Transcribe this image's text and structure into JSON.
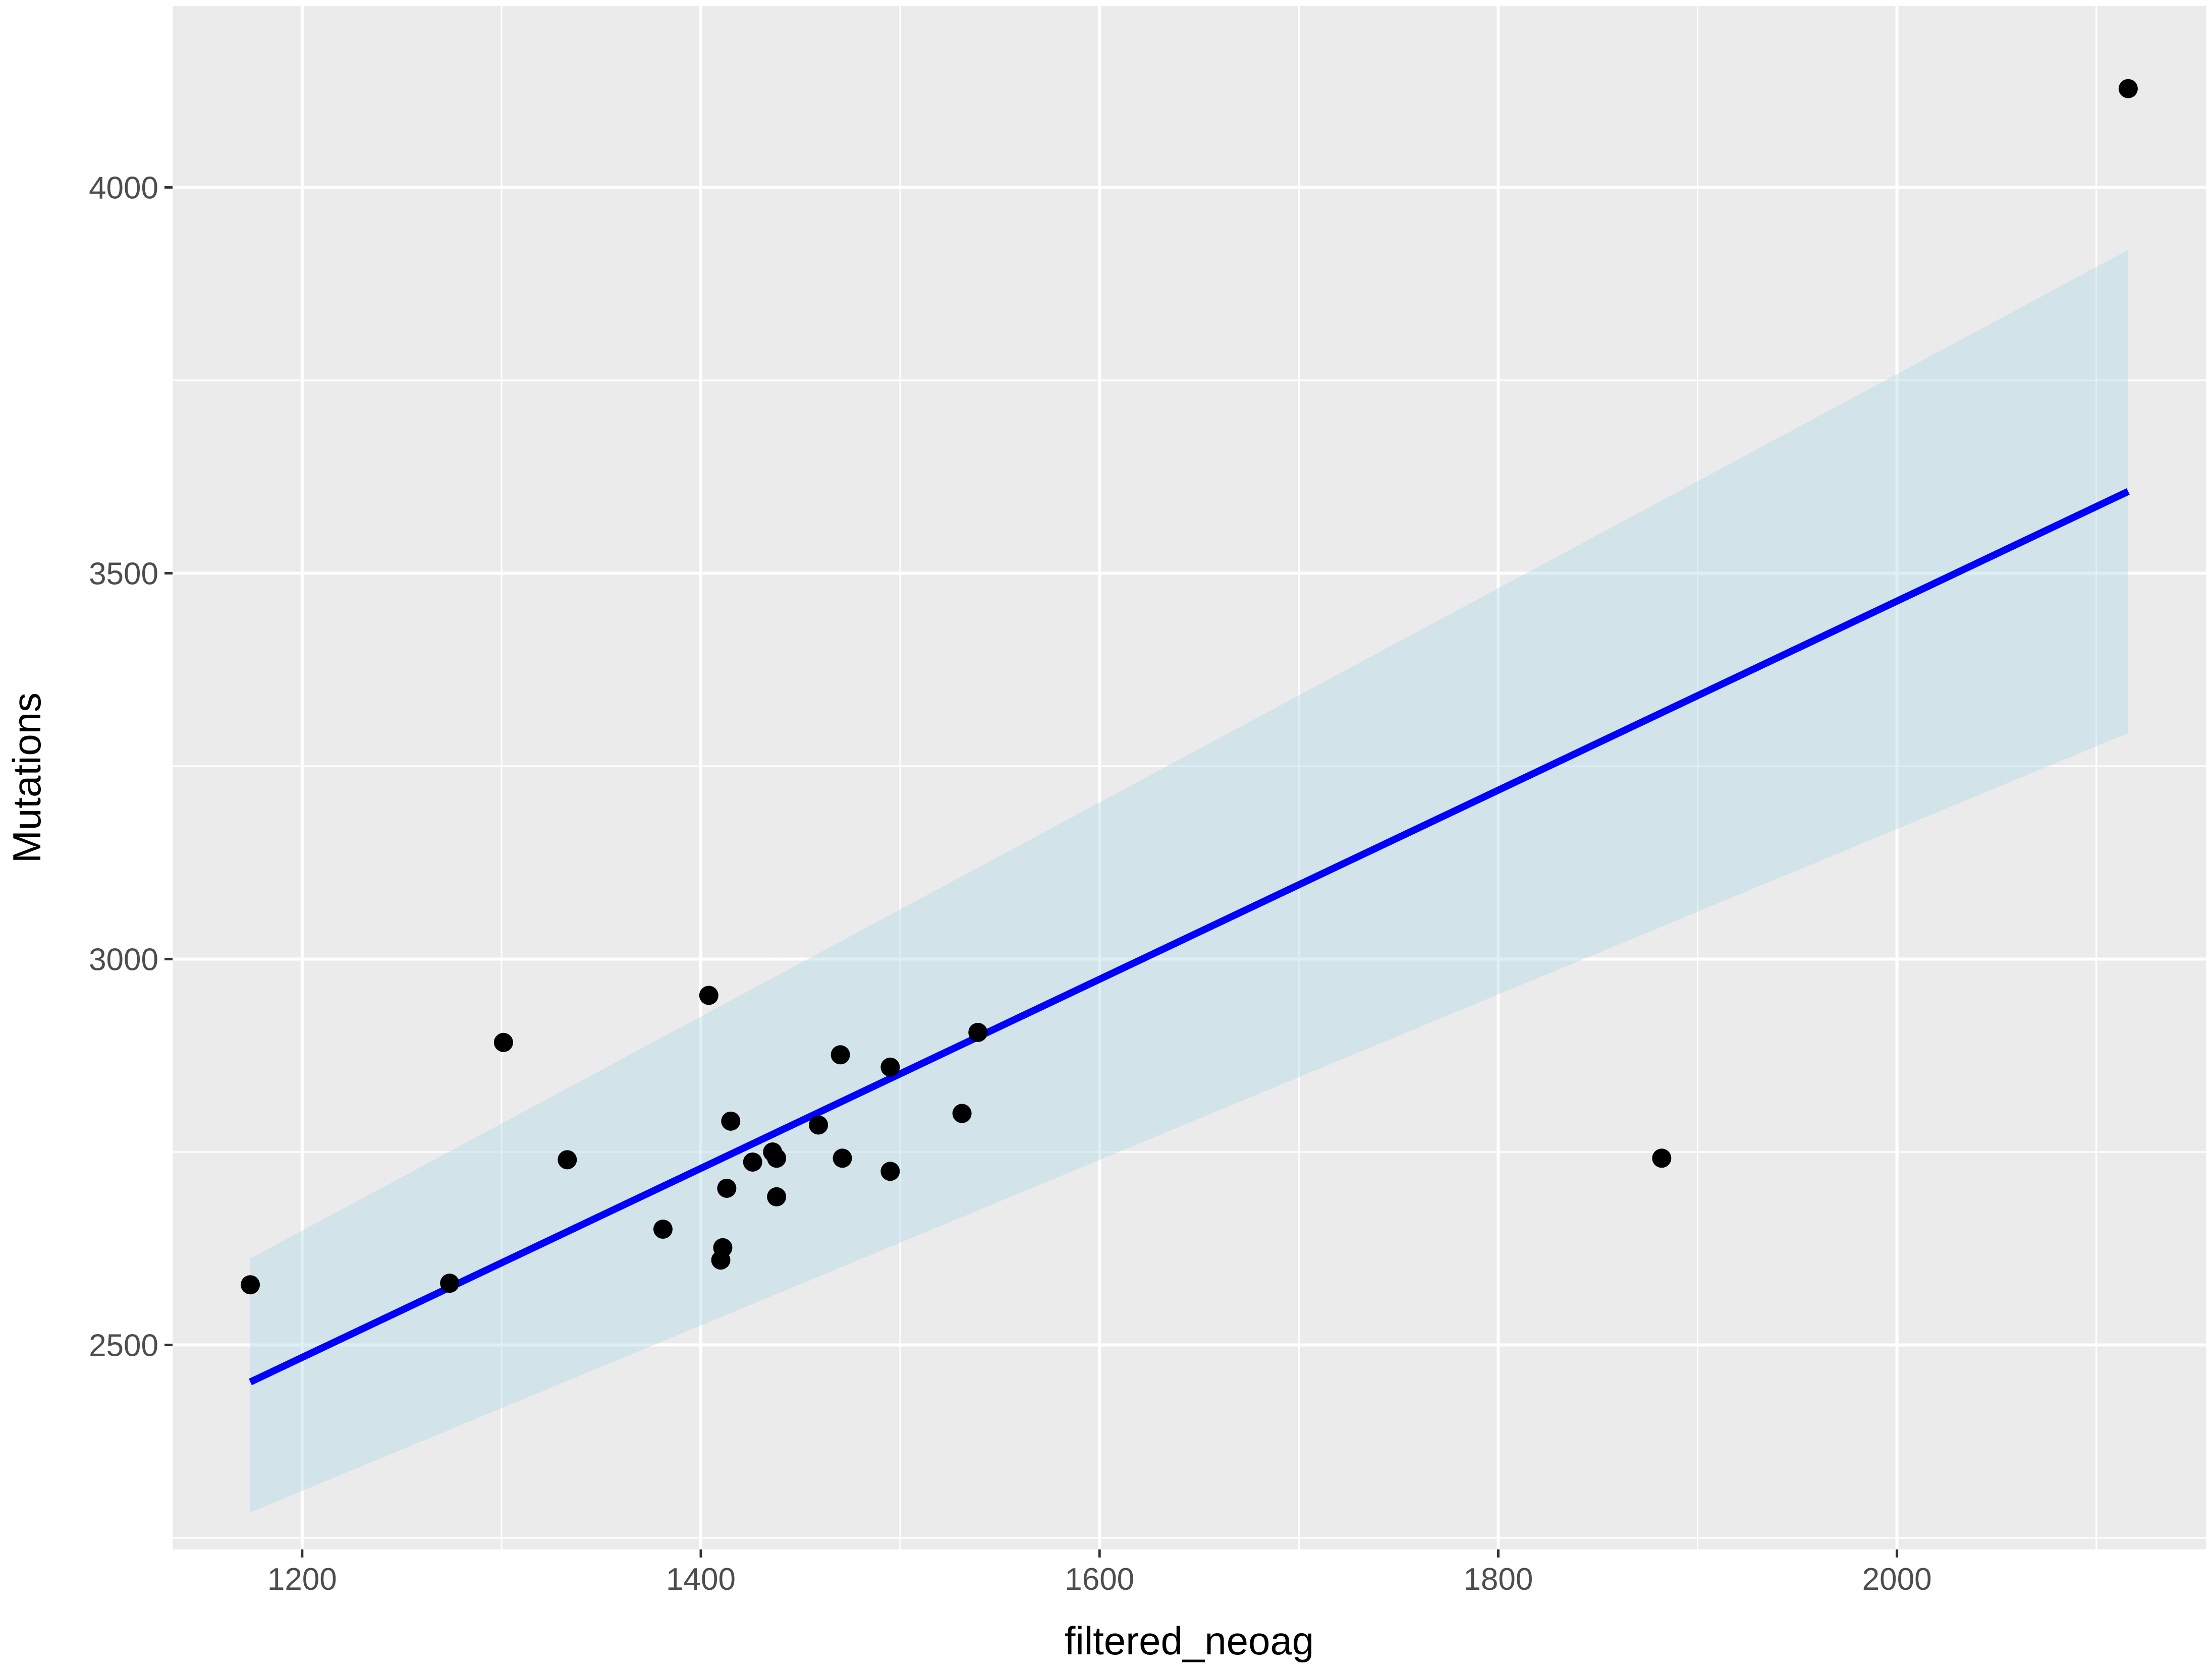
{
  "chart_data": {
    "type": "scatter",
    "xlabel": "filtered_neoag",
    "ylabel": "Mutations",
    "xlim": [
      1135,
      2155
    ],
    "ylim": [
      2235,
      4235
    ],
    "x_ticks": [
      1200,
      1400,
      1600,
      1800,
      2000
    ],
    "y_ticks": [
      2500,
      3000,
      3500,
      4000
    ],
    "x_minor_ticks": [
      1300,
      1500,
      1700,
      1900,
      2100
    ],
    "y_minor_ticks": [
      2250,
      2750,
      3250,
      3750
    ],
    "points": [
      {
        "x": 1174,
        "y": 2578
      },
      {
        "x": 1274,
        "y": 2580
      },
      {
        "x": 1301,
        "y": 2892
      },
      {
        "x": 1333,
        "y": 2740
      },
      {
        "x": 1381,
        "y": 2650
      },
      {
        "x": 1404,
        "y": 2953
      },
      {
        "x": 1410,
        "y": 2610
      },
      {
        "x": 1411,
        "y": 2626
      },
      {
        "x": 1413,
        "y": 2703
      },
      {
        "x": 1415,
        "y": 2790
      },
      {
        "x": 1426,
        "y": 2737
      },
      {
        "x": 1436,
        "y": 2750
      },
      {
        "x": 1438,
        "y": 2742
      },
      {
        "x": 1438,
        "y": 2692
      },
      {
        "x": 1459,
        "y": 2785
      },
      {
        "x": 1470,
        "y": 2876
      },
      {
        "x": 1471,
        "y": 2742
      },
      {
        "x": 1495,
        "y": 2860
      },
      {
        "x": 1495,
        "y": 2725
      },
      {
        "x": 1531,
        "y": 2800
      },
      {
        "x": 1539,
        "y": 2905
      },
      {
        "x": 1882,
        "y": 2742
      },
      {
        "x": 2116,
        "y": 4128
      }
    ],
    "fit": {
      "type": "linear",
      "x": [
        1174,
        2116
      ],
      "y": [
        2452,
        3606
      ],
      "ci_lower": [
        2283,
        3293
      ],
      "ci_upper": [
        2612,
        3919
      ]
    },
    "colors": {
      "panel": "#ebebeb",
      "grid": "#ffffff",
      "point": "#000000",
      "line": "#0000ff",
      "ribbon": "#add8e6"
    },
    "grid": true,
    "legend": "none"
  }
}
